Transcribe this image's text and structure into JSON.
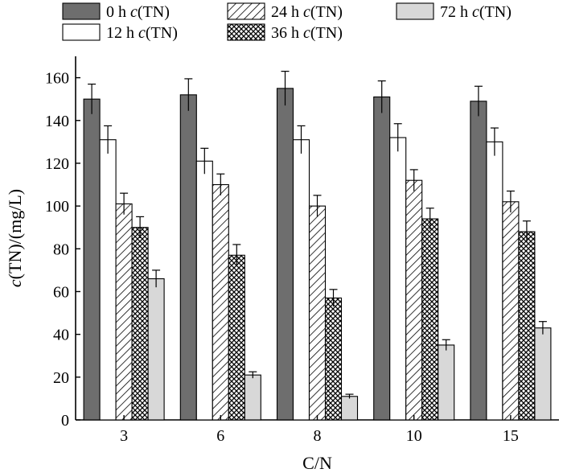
{
  "chart_data": {
    "type": "bar",
    "xlabel": "C/N",
    "ylabel_italic": "c",
    "ylabel_rest": "(TN)/(mg/L)",
    "categories": [
      "3",
      "6",
      "8",
      "10",
      "15"
    ],
    "ylim": [
      0,
      170
    ],
    "yticks": [
      0,
      20,
      40,
      60,
      80,
      100,
      120,
      140,
      160
    ],
    "grid": false,
    "legend_position": "top",
    "series": [
      {
        "name_prefix": "0 h ",
        "name_italic": "c",
        "name_suffix": "(TN)",
        "pattern": "dark",
        "values": [
          150,
          152,
          155,
          151,
          149
        ],
        "errors": [
          7,
          7.5,
          8,
          7.5,
          7
        ]
      },
      {
        "name_prefix": "12 h ",
        "name_italic": "c",
        "name_suffix": "(TN)",
        "pattern": "white",
        "values": [
          131,
          121,
          131,
          132,
          130
        ],
        "errors": [
          6.5,
          6,
          6.5,
          6.5,
          6.5
        ]
      },
      {
        "name_prefix": "24 h ",
        "name_italic": "c",
        "name_suffix": "(TN)",
        "pattern": "hatch",
        "values": [
          101,
          110,
          100,
          112,
          102
        ],
        "errors": [
          5,
          5,
          5,
          5,
          5
        ]
      },
      {
        "name_prefix": "36 h ",
        "name_italic": "c",
        "name_suffix": "(TN)",
        "pattern": "cross",
        "values": [
          90,
          77,
          57,
          94,
          88
        ],
        "errors": [
          5,
          5,
          4,
          5,
          5
        ]
      },
      {
        "name_prefix": "72 h ",
        "name_italic": "c",
        "name_suffix": "(TN)",
        "pattern": "light",
        "values": [
          66,
          21,
          11,
          35,
          43
        ],
        "errors": [
          4,
          1.5,
          1,
          2.5,
          3
        ]
      }
    ]
  }
}
